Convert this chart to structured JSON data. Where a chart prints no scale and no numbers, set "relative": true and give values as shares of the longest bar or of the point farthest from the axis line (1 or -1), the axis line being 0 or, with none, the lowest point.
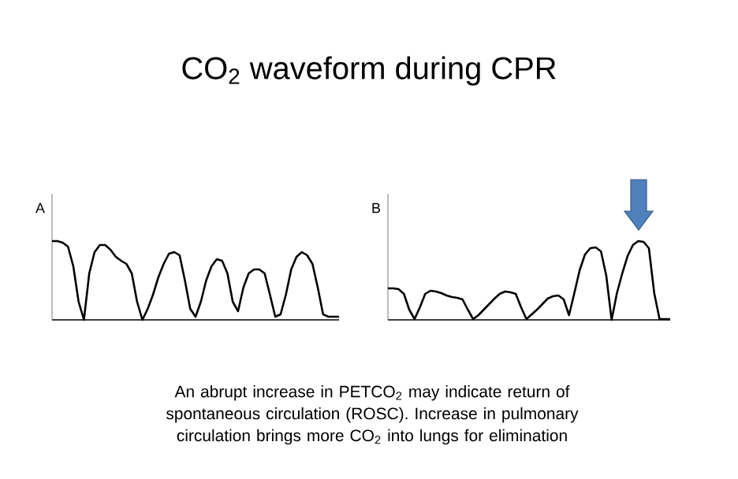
{
  "chart_data": [
    {
      "type": "line",
      "title": "CO$_{2}$ waveform during CPR",
      "subtitle": "A",
      "relative": true,
      "annotations": [
        "An abrupt increase in PETCO$_{2}$ may indicate return of spontaneous  circulation (ROSC). Increase in pulmonary circulation brings more CO$_{2}$  into lungs for elimination"
      ],
      "categories": [
        null,
        null,
        null,
        null,
        null,
        null,
        null,
        null,
        null,
        null,
        null,
        null,
        null,
        null,
        null,
        null,
        null,
        null,
        null,
        null,
        null,
        null,
        null,
        null,
        null,
        null,
        null,
        null,
        null,
        null,
        null,
        null,
        null,
        null,
        null,
        null,
        null,
        null,
        null,
        null,
        null,
        null,
        null,
        null,
        null,
        null,
        null,
        null,
        null,
        null,
        null,
        null,
        null,
        null,
        null
      ],
      "series": [
        {
          "color": "#000000",
          "values": [
            1.0,
            1.0,
            0.98,
            0.93,
            0.68,
            0.23,
            0,
            0.59,
            0.86,
            0.95,
            0.95,
            0.89,
            0.8,
            0.75,
            0.71,
            0.59,
            0.23,
            0,
            0.14,
            0.32,
            0.54,
            0.71,
            0.84,
            0.86,
            0.82,
            0.5,
            0.14,
            0.04,
            0.23,
            0.5,
            0.68,
            0.77,
            0.75,
            0.59,
            0.23,
            0.11,
            0.41,
            0.59,
            0.64,
            0.64,
            0.59,
            0.32,
            0.04,
            0.07,
            0.32,
            0.64,
            0.8,
            0.86,
            0.82,
            0.71,
            0.41,
            0.07,
            0.04,
            0.04,
            0.04
          ]
        }
      ]
    },
    {
      "type": "line",
      "subtitle": "B",
      "relative": true,
      "categories": [
        null,
        null,
        null,
        null,
        null,
        null,
        null,
        null,
        null,
        null,
        null,
        null,
        null,
        null,
        null,
        null,
        null,
        null,
        null,
        null,
        null,
        null,
        null,
        null,
        null,
        null,
        null,
        null,
        null,
        null,
        null,
        null,
        null,
        null,
        null,
        null,
        null,
        null,
        null,
        null,
        null,
        null,
        null,
        null,
        null,
        null,
        null,
        null,
        null,
        null,
        null,
        null,
        null,
        null
      ],
      "series": [
        {
          "color": "#000000",
          "values": [
            0.4,
            0.4,
            0.39,
            0.33,
            0.13,
            0.01,
            0.16,
            0.33,
            0.37,
            0.36,
            0.34,
            0.31,
            0.29,
            0.28,
            0.26,
            0.13,
            0.01,
            0.06,
            0.13,
            0.2,
            0.27,
            0.33,
            0.36,
            0.35,
            0.33,
            0.16,
            0.01,
            0.07,
            0.13,
            0.2,
            0.27,
            0.3,
            0.31,
            0.26,
            0.06,
            0.34,
            0.63,
            0.83,
            0.91,
            0.92,
            0.87,
            0.56,
            0,
            0.34,
            0.59,
            0.81,
            0.95,
            1.0,
            0.99,
            0.91,
            0.34,
            0.01,
            0.01,
            0.01
          ]
        }
      ]
    }
  ]
}
